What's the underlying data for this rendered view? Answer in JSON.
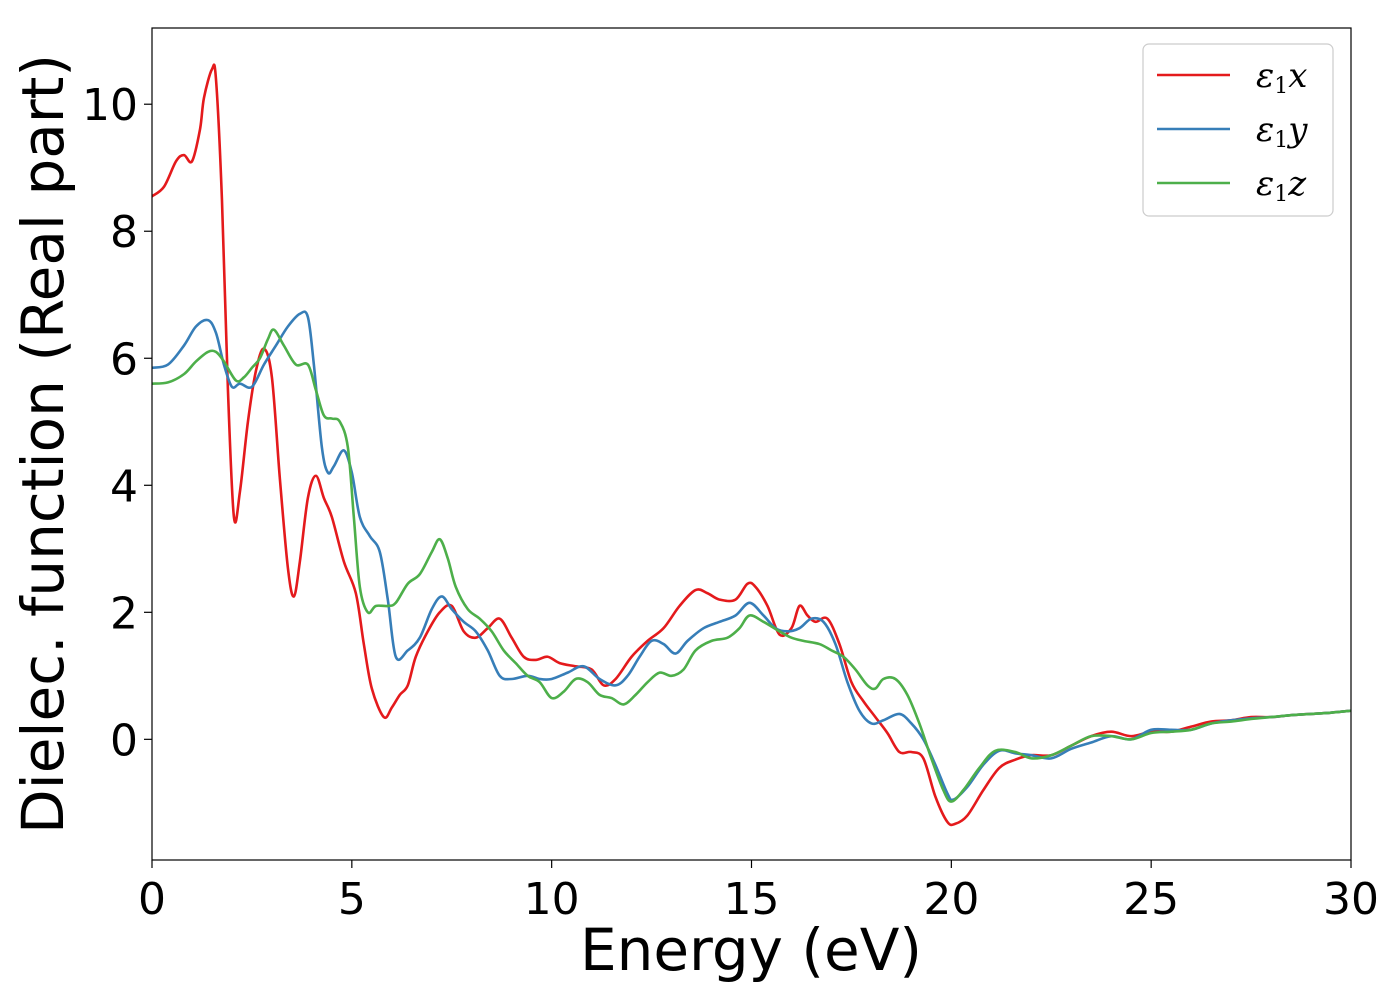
{
  "chart_data": {
    "type": "line",
    "title": "",
    "xlabel": "Energy (eV)",
    "ylabel": "Dielec. function (Real part)",
    "xlim": [
      0,
      30
    ],
    "ylim": [
      -1.9,
      11.2
    ],
    "xticks": [
      0,
      5,
      10,
      15,
      20,
      25,
      30
    ],
    "yticks": [
      0,
      2,
      4,
      6,
      8,
      10
    ],
    "grid": false,
    "legend_position": "top-right",
    "series": [
      {
        "name": "ε1x",
        "symbol": "ε",
        "sub": "1",
        "axis": "x",
        "color": "#e41a1c",
        "points": [
          [
            0,
            8.55
          ],
          [
            0.3,
            8.7
          ],
          [
            0.6,
            9.1
          ],
          [
            0.8,
            9.2
          ],
          [
            1.0,
            9.1
          ],
          [
            1.2,
            9.6
          ],
          [
            1.3,
            10.1
          ],
          [
            1.5,
            10.55
          ],
          [
            1.6,
            10.4
          ],
          [
            1.75,
            8.5
          ],
          [
            1.9,
            5.5
          ],
          [
            2.05,
            3.5
          ],
          [
            2.2,
            3.9
          ],
          [
            2.4,
            5.0
          ],
          [
            2.6,
            5.8
          ],
          [
            2.8,
            6.15
          ],
          [
            3.0,
            5.7
          ],
          [
            3.2,
            4.1
          ],
          [
            3.4,
            2.7
          ],
          [
            3.55,
            2.25
          ],
          [
            3.7,
            2.8
          ],
          [
            3.9,
            3.8
          ],
          [
            4.1,
            4.15
          ],
          [
            4.3,
            3.8
          ],
          [
            4.5,
            3.5
          ],
          [
            4.8,
            2.8
          ],
          [
            5.1,
            2.3
          ],
          [
            5.3,
            1.5
          ],
          [
            5.5,
            0.8
          ],
          [
            5.8,
            0.35
          ],
          [
            6.0,
            0.5
          ],
          [
            6.2,
            0.7
          ],
          [
            6.4,
            0.85
          ],
          [
            6.6,
            1.3
          ],
          [
            6.9,
            1.7
          ],
          [
            7.2,
            2.0
          ],
          [
            7.5,
            2.1
          ],
          [
            7.8,
            1.7
          ],
          [
            8.1,
            1.6
          ],
          [
            8.4,
            1.75
          ],
          [
            8.7,
            1.9
          ],
          [
            9.0,
            1.6
          ],
          [
            9.3,
            1.3
          ],
          [
            9.6,
            1.25
          ],
          [
            9.9,
            1.3
          ],
          [
            10.2,
            1.2
          ],
          [
            10.6,
            1.15
          ],
          [
            11.0,
            1.1
          ],
          [
            11.3,
            0.85
          ],
          [
            11.6,
            0.95
          ],
          [
            12.0,
            1.3
          ],
          [
            12.4,
            1.55
          ],
          [
            12.8,
            1.75
          ],
          [
            13.2,
            2.1
          ],
          [
            13.6,
            2.35
          ],
          [
            13.9,
            2.3
          ],
          [
            14.2,
            2.2
          ],
          [
            14.6,
            2.2
          ],
          [
            14.9,
            2.45
          ],
          [
            15.1,
            2.4
          ],
          [
            15.4,
            2.1
          ],
          [
            15.7,
            1.65
          ],
          [
            16.0,
            1.75
          ],
          [
            16.2,
            2.1
          ],
          [
            16.4,
            1.95
          ],
          [
            16.6,
            1.85
          ],
          [
            16.9,
            1.9
          ],
          [
            17.2,
            1.5
          ],
          [
            17.5,
            0.9
          ],
          [
            17.8,
            0.6
          ],
          [
            18.1,
            0.35
          ],
          [
            18.4,
            0.1
          ],
          [
            18.7,
            -0.2
          ],
          [
            19.0,
            -0.2
          ],
          [
            19.3,
            -0.3
          ],
          [
            19.6,
            -0.9
          ],
          [
            19.9,
            -1.3
          ],
          [
            20.1,
            -1.33
          ],
          [
            20.4,
            -1.2
          ],
          [
            20.8,
            -0.8
          ],
          [
            21.2,
            -0.45
          ],
          [
            21.6,
            -0.32
          ],
          [
            22.0,
            -0.25
          ],
          [
            22.5,
            -0.25
          ],
          [
            23.0,
            -0.1
          ],
          [
            23.5,
            0.05
          ],
          [
            24.0,
            0.12
          ],
          [
            24.5,
            0.05
          ],
          [
            25.0,
            0.12
          ],
          [
            25.5,
            0.12
          ],
          [
            26.0,
            0.2
          ],
          [
            26.5,
            0.28
          ],
          [
            27.0,
            0.3
          ],
          [
            27.5,
            0.35
          ],
          [
            28.0,
            0.35
          ],
          [
            28.5,
            0.38
          ],
          [
            29.0,
            0.4
          ],
          [
            29.5,
            0.42
          ],
          [
            30.0,
            0.45
          ]
        ]
      },
      {
        "name": "ε1y",
        "symbol": "ε",
        "sub": "1",
        "axis": "y",
        "color": "#377eb8",
        "points": [
          [
            0,
            5.85
          ],
          [
            0.4,
            5.9
          ],
          [
            0.8,
            6.2
          ],
          [
            1.1,
            6.5
          ],
          [
            1.4,
            6.6
          ],
          [
            1.6,
            6.4
          ],
          [
            1.8,
            5.9
          ],
          [
            2.0,
            5.55
          ],
          [
            2.2,
            5.6
          ],
          [
            2.5,
            5.55
          ],
          [
            2.8,
            5.9
          ],
          [
            3.1,
            6.2
          ],
          [
            3.4,
            6.5
          ],
          [
            3.7,
            6.7
          ],
          [
            3.9,
            6.65
          ],
          [
            4.05,
            5.9
          ],
          [
            4.25,
            4.6
          ],
          [
            4.4,
            4.2
          ],
          [
            4.55,
            4.3
          ],
          [
            4.8,
            4.55
          ],
          [
            5.0,
            4.2
          ],
          [
            5.2,
            3.5
          ],
          [
            5.45,
            3.2
          ],
          [
            5.7,
            2.95
          ],
          [
            5.9,
            2.2
          ],
          [
            6.1,
            1.3
          ],
          [
            6.4,
            1.4
          ],
          [
            6.7,
            1.6
          ],
          [
            7.0,
            2.05
          ],
          [
            7.25,
            2.25
          ],
          [
            7.5,
            2.05
          ],
          [
            7.8,
            1.85
          ],
          [
            8.1,
            1.7
          ],
          [
            8.4,
            1.4
          ],
          [
            8.7,
            1.0
          ],
          [
            9.0,
            0.95
          ],
          [
            9.4,
            1.0
          ],
          [
            9.7,
            0.95
          ],
          [
            10.0,
            0.95
          ],
          [
            10.4,
            1.05
          ],
          [
            10.8,
            1.15
          ],
          [
            11.2,
            0.95
          ],
          [
            11.6,
            0.85
          ],
          [
            11.9,
            1.0
          ],
          [
            12.2,
            1.3
          ],
          [
            12.5,
            1.55
          ],
          [
            12.8,
            1.5
          ],
          [
            13.1,
            1.35
          ],
          [
            13.4,
            1.55
          ],
          [
            13.8,
            1.75
          ],
          [
            14.2,
            1.85
          ],
          [
            14.6,
            1.95
          ],
          [
            14.95,
            2.15
          ],
          [
            15.3,
            1.95
          ],
          [
            15.6,
            1.75
          ],
          [
            15.9,
            1.7
          ],
          [
            16.2,
            1.75
          ],
          [
            16.5,
            1.9
          ],
          [
            16.8,
            1.85
          ],
          [
            17.1,
            1.5
          ],
          [
            17.4,
            0.9
          ],
          [
            17.7,
            0.45
          ],
          [
            18.0,
            0.25
          ],
          [
            18.3,
            0.3
          ],
          [
            18.7,
            0.4
          ],
          [
            19.0,
            0.25
          ],
          [
            19.3,
            0.0
          ],
          [
            19.6,
            -0.4
          ],
          [
            19.9,
            -0.85
          ],
          [
            20.05,
            -0.95
          ],
          [
            20.4,
            -0.75
          ],
          [
            20.8,
            -0.4
          ],
          [
            21.2,
            -0.18
          ],
          [
            21.6,
            -0.22
          ],
          [
            22.0,
            -0.25
          ],
          [
            22.5,
            -0.3
          ],
          [
            23.0,
            -0.15
          ],
          [
            23.5,
            -0.05
          ],
          [
            24.0,
            0.05
          ],
          [
            24.5,
            0.0
          ],
          [
            25.0,
            0.15
          ],
          [
            25.5,
            0.15
          ],
          [
            26.0,
            0.15
          ],
          [
            26.5,
            0.25
          ],
          [
            27.0,
            0.3
          ],
          [
            27.5,
            0.33
          ],
          [
            28.0,
            0.35
          ],
          [
            28.5,
            0.38
          ],
          [
            29.0,
            0.4
          ],
          [
            29.5,
            0.42
          ],
          [
            30.0,
            0.45
          ]
        ]
      },
      {
        "name": "ε1z",
        "symbol": "ε",
        "sub": "1",
        "axis": "z",
        "color": "#4daf4a",
        "points": [
          [
            0,
            5.6
          ],
          [
            0.4,
            5.62
          ],
          [
            0.8,
            5.75
          ],
          [
            1.1,
            5.95
          ],
          [
            1.4,
            6.1
          ],
          [
            1.6,
            6.1
          ],
          [
            1.8,
            5.95
          ],
          [
            2.1,
            5.65
          ],
          [
            2.3,
            5.7
          ],
          [
            2.5,
            5.85
          ],
          [
            2.7,
            6.0
          ],
          [
            2.9,
            6.3
          ],
          [
            3.05,
            6.45
          ],
          [
            3.3,
            6.2
          ],
          [
            3.6,
            5.9
          ],
          [
            3.9,
            5.9
          ],
          [
            4.1,
            5.5
          ],
          [
            4.3,
            5.1
          ],
          [
            4.5,
            5.05
          ],
          [
            4.7,
            5.0
          ],
          [
            4.9,
            4.6
          ],
          [
            5.05,
            3.5
          ],
          [
            5.2,
            2.4
          ],
          [
            5.4,
            2.0
          ],
          [
            5.6,
            2.1
          ],
          [
            5.9,
            2.1
          ],
          [
            6.1,
            2.15
          ],
          [
            6.4,
            2.45
          ],
          [
            6.7,
            2.6
          ],
          [
            7.0,
            2.95
          ],
          [
            7.2,
            3.15
          ],
          [
            7.4,
            2.85
          ],
          [
            7.6,
            2.4
          ],
          [
            7.9,
            2.05
          ],
          [
            8.2,
            1.9
          ],
          [
            8.5,
            1.7
          ],
          [
            8.8,
            1.4
          ],
          [
            9.1,
            1.2
          ],
          [
            9.4,
            1.0
          ],
          [
            9.7,
            0.9
          ],
          [
            10.0,
            0.65
          ],
          [
            10.3,
            0.75
          ],
          [
            10.6,
            0.95
          ],
          [
            10.9,
            0.9
          ],
          [
            11.2,
            0.7
          ],
          [
            11.5,
            0.65
          ],
          [
            11.8,
            0.55
          ],
          [
            12.1,
            0.7
          ],
          [
            12.4,
            0.9
          ],
          [
            12.7,
            1.05
          ],
          [
            13.0,
            1.0
          ],
          [
            13.3,
            1.1
          ],
          [
            13.6,
            1.4
          ],
          [
            14.0,
            1.55
          ],
          [
            14.4,
            1.6
          ],
          [
            14.7,
            1.75
          ],
          [
            14.95,
            1.95
          ],
          [
            15.3,
            1.85
          ],
          [
            15.7,
            1.7
          ],
          [
            16.0,
            1.6
          ],
          [
            16.3,
            1.55
          ],
          [
            16.7,
            1.5
          ],
          [
            17.0,
            1.4
          ],
          [
            17.3,
            1.3
          ],
          [
            17.6,
            1.1
          ],
          [
            17.9,
            0.85
          ],
          [
            18.1,
            0.8
          ],
          [
            18.3,
            0.95
          ],
          [
            18.6,
            0.95
          ],
          [
            18.9,
            0.7
          ],
          [
            19.2,
            0.25
          ],
          [
            19.5,
            -0.3
          ],
          [
            19.8,
            -0.8
          ],
          [
            20.0,
            -0.98
          ],
          [
            20.3,
            -0.8
          ],
          [
            20.7,
            -0.45
          ],
          [
            21.1,
            -0.18
          ],
          [
            21.6,
            -0.2
          ],
          [
            22.0,
            -0.3
          ],
          [
            22.5,
            -0.25
          ],
          [
            23.0,
            -0.1
          ],
          [
            23.5,
            0.05
          ],
          [
            24.0,
            0.05
          ],
          [
            24.5,
            0.0
          ],
          [
            25.0,
            0.1
          ],
          [
            25.5,
            0.12
          ],
          [
            26.0,
            0.15
          ],
          [
            26.5,
            0.25
          ],
          [
            27.0,
            0.28
          ],
          [
            27.5,
            0.32
          ],
          [
            28.0,
            0.35
          ],
          [
            28.5,
            0.38
          ],
          [
            29.0,
            0.4
          ],
          [
            29.5,
            0.42
          ],
          [
            30.0,
            0.45
          ]
        ]
      }
    ]
  }
}
